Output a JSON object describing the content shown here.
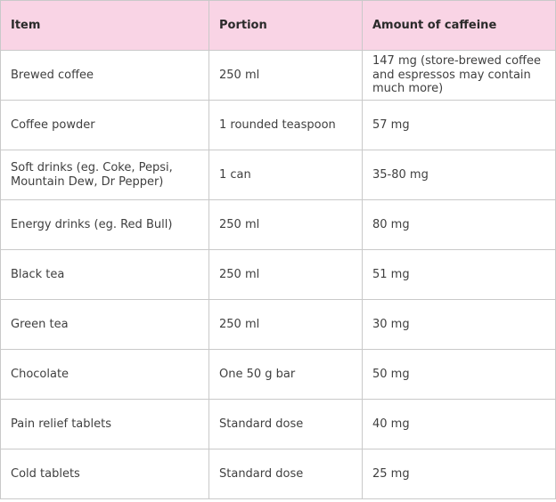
{
  "table": {
    "headers": [
      "Item",
      "Portion",
      "Amount of caffeine"
    ],
    "rows": [
      [
        "Brewed coffee",
        "250 ml",
        "147 mg (store-brewed coffee and espressos may contain much more)"
      ],
      [
        "Coffee powder",
        "1 rounded teaspoon",
        "57 mg"
      ],
      [
        "Soft drinks (eg. Coke, Pepsi, Mountain Dew, Dr Pepper)",
        "1 can",
        "35-80 mg"
      ],
      [
        "Energy drinks (eg. Red Bull)",
        "250 ml",
        "80 mg"
      ],
      [
        "Black tea",
        "250 ml",
        "51 mg"
      ],
      [
        "Green tea",
        "250 ml",
        "30 mg"
      ],
      [
        "Chocolate",
        "One 50 g bar",
        "50 mg"
      ],
      [
        "Pain relief tablets",
        "Standard dose",
        "40 mg"
      ],
      [
        "Cold tablets",
        "Standard dose",
        "25 mg"
      ]
    ]
  },
  "colors": {
    "header_background": "#f9d4e5",
    "border": "#c9c9c9",
    "text": "#3f3f3f"
  }
}
